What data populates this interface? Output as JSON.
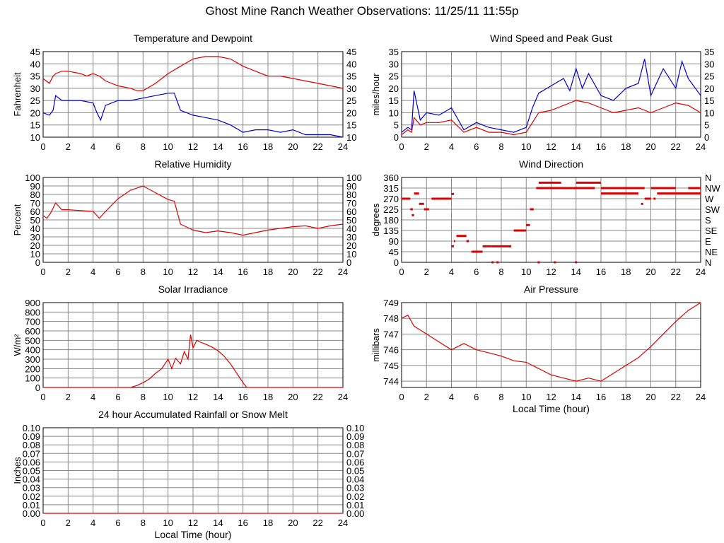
{
  "page": {
    "title": "Ghost Mine Ranch Weather Observations: 11/25/11 11:55p"
  },
  "colors": {
    "series_red": "#dd0000",
    "series_blue": "#0000cc",
    "grid": "#888888"
  },
  "chart_data": [
    {
      "id": "temperature",
      "type": "line",
      "title": "Temperature and Dewpoint",
      "ylabel": "Fahrenheit",
      "xlabel": "",
      "xlim": [
        0,
        24
      ],
      "ylim": [
        10,
        45
      ],
      "yticks": [
        10,
        15,
        20,
        25,
        30,
        35,
        40,
        45
      ],
      "xticks": [
        0,
        2,
        4,
        6,
        8,
        10,
        12,
        14,
        16,
        18,
        20,
        22,
        24
      ],
      "right_axis": true,
      "grid": true,
      "series": [
        {
          "color": "#dd0000",
          "x": [
            0,
            0.5,
            0.8,
            1,
            1.5,
            2,
            3,
            3.5,
            4,
            4.5,
            5,
            6,
            7,
            7.5,
            8,
            9,
            10,
            11,
            12,
            13,
            14,
            15,
            16,
            17,
            18,
            19,
            20,
            21,
            22,
            23,
            24
          ],
          "y": [
            34,
            32,
            35,
            36,
            37,
            37,
            36,
            35,
            36,
            35,
            33,
            31,
            30,
            29,
            29,
            32,
            36,
            39,
            42,
            43,
            43,
            42,
            39,
            37,
            35,
            35,
            34,
            33,
            32,
            31,
            30
          ]
        },
        {
          "color": "#0000cc",
          "x": [
            0,
            0.5,
            0.8,
            1,
            1.5,
            2,
            3,
            4,
            4.3,
            4.6,
            5,
            6,
            7,
            8,
            9,
            10,
            10.5,
            11,
            12,
            13,
            14,
            15,
            16,
            17,
            18,
            19,
            20,
            21,
            22,
            23,
            24
          ],
          "y": [
            20,
            19,
            21,
            27,
            25,
            25,
            25,
            24,
            20,
            17,
            23,
            25,
            25,
            26,
            27,
            28,
            28,
            21,
            19,
            18,
            17,
            15,
            12,
            13,
            13,
            12,
            13,
            11,
            11,
            11,
            10
          ]
        }
      ]
    },
    {
      "id": "wind-speed",
      "type": "line",
      "title": "Wind Speed and Peak Gust",
      "ylabel": "miles/hour",
      "xlabel": "",
      "xlim": [
        0,
        24
      ],
      "ylim": [
        0,
        35
      ],
      "yticks": [
        0,
        5,
        10,
        15,
        20,
        25,
        30,
        35
      ],
      "xticks": [
        0,
        2,
        4,
        6,
        8,
        10,
        12,
        14,
        16,
        18,
        20,
        22,
        24
      ],
      "right_axis": true,
      "grid": true,
      "series": [
        {
          "color": "#0000cc",
          "x": [
            0,
            0.5,
            0.8,
            1,
            1.5,
            2,
            3,
            4,
            5,
            6,
            7,
            8,
            9,
            10,
            10.5,
            11,
            12,
            13,
            13.5,
            14,
            14.5,
            15,
            16,
            17,
            18,
            19,
            19.5,
            20,
            21,
            22,
            22.5,
            23,
            24
          ],
          "y": [
            2,
            4,
            3,
            19,
            7,
            10,
            9,
            12,
            3,
            6,
            4,
            3,
            2,
            4,
            12,
            18,
            21,
            24,
            19,
            28,
            20,
            26,
            17,
            15,
            20,
            22,
            32,
            17,
            28,
            20,
            31,
            24,
            17
          ]
        },
        {
          "color": "#dd0000",
          "x": [
            0,
            0.5,
            0.8,
            1,
            1.5,
            2,
            3,
            4,
            5,
            6,
            7,
            8,
            9,
            10,
            11,
            12,
            13,
            14,
            15,
            16,
            17,
            18,
            19,
            20,
            21,
            22,
            23,
            24
          ],
          "y": [
            1,
            3,
            2,
            8,
            5,
            6,
            6,
            7,
            2,
            4,
            2,
            2,
            1,
            2,
            10,
            11,
            13,
            15,
            14,
            12,
            10,
            11,
            12,
            10,
            12,
            14,
            13,
            10
          ]
        }
      ]
    },
    {
      "id": "humidity",
      "type": "line",
      "title": "Relative Humidity",
      "ylabel": "Percent",
      "xlabel": "",
      "xlim": [
        0,
        24
      ],
      "ylim": [
        0,
        100
      ],
      "yticks": [
        0,
        10,
        20,
        30,
        40,
        50,
        60,
        70,
        80,
        90,
        100
      ],
      "xticks": [
        0,
        2,
        4,
        6,
        8,
        10,
        12,
        14,
        16,
        18,
        20,
        22,
        24
      ],
      "right_axis": true,
      "grid": true,
      "series": [
        {
          "color": "#dd0000",
          "x": [
            0,
            0.3,
            0.6,
            1,
            1.5,
            2,
            3,
            4,
            4.5,
            5,
            6,
            7,
            8,
            9,
            10,
            10.5,
            11,
            12,
            13,
            14,
            15,
            16,
            17,
            18,
            19,
            20,
            21,
            22,
            23,
            24
          ],
          "y": [
            55,
            52,
            58,
            70,
            62,
            62,
            61,
            60,
            52,
            60,
            75,
            85,
            90,
            82,
            74,
            72,
            45,
            38,
            35,
            37,
            35,
            32,
            35,
            38,
            40,
            42,
            43,
            40,
            43,
            45
          ]
        }
      ]
    },
    {
      "id": "wind-direction",
      "type": "scatter",
      "title": "Wind Direction",
      "ylabel": "degrees",
      "xlabel": "",
      "xlim": [
        0,
        24
      ],
      "ylim": [
        0,
        360
      ],
      "yticks": [
        0,
        45,
        90,
        135,
        180,
        225,
        270,
        315,
        360
      ],
      "xticks": [
        0,
        2,
        4,
        6,
        8,
        10,
        12,
        14,
        16,
        18,
        20,
        22,
        24
      ],
      "right_tick_labels": [
        "N",
        "NE",
        "E",
        "SE",
        "S",
        "SW",
        "W",
        "NW",
        "N"
      ],
      "grid": true,
      "segments": [
        [
          0,
          0.7,
          270
        ],
        [
          0.7,
          0.9,
          225
        ],
        [
          0.9,
          1.0,
          200
        ],
        [
          1.0,
          1.4,
          292
        ],
        [
          1.4,
          1.8,
          248
        ],
        [
          1.8,
          2.2,
          225
        ],
        [
          2.4,
          4.0,
          270
        ],
        [
          4.0,
          4.2,
          290
        ],
        [
          4.0,
          4.2,
          68
        ],
        [
          4.2,
          4.3,
          90
        ],
        [
          4.4,
          5.2,
          112
        ],
        [
          5.2,
          5.4,
          90
        ],
        [
          5.6,
          6.5,
          45
        ],
        [
          6.5,
          7.2,
          68
        ],
        [
          7.2,
          8.8,
          68
        ],
        [
          9.0,
          10.0,
          135
        ],
        [
          10.0,
          10.3,
          158
        ],
        [
          10.3,
          10.6,
          225
        ],
        [
          10.8,
          13.0,
          315
        ],
        [
          11.0,
          12.8,
          338
        ],
        [
          13.0,
          15.5,
          315
        ],
        [
          14.0,
          16.0,
          338
        ],
        [
          16.0,
          19.0,
          292
        ],
        [
          16.0,
          19.5,
          315
        ],
        [
          19.5,
          20.0,
          270
        ],
        [
          20.0,
          22.0,
          315
        ],
        [
          20.5,
          24.0,
          292
        ],
        [
          23.0,
          24.0,
          315
        ]
      ],
      "points": [
        [
          0.9,
          200
        ],
        [
          7.3,
          0
        ],
        [
          7.7,
          0
        ],
        [
          11.0,
          0
        ],
        [
          12.3,
          0
        ],
        [
          14.0,
          0
        ],
        [
          19.3,
          248
        ],
        [
          20.3,
          270
        ]
      ]
    },
    {
      "id": "solar",
      "type": "line",
      "title": "Solar Irradiance",
      "ylabel": "W/m²",
      "xlabel": "",
      "xlim": [
        0,
        24
      ],
      "ylim": [
        0,
        900
      ],
      "yticks": [
        0,
        100,
        200,
        300,
        400,
        500,
        600,
        700,
        800,
        900
      ],
      "xticks": [
        0,
        2,
        4,
        6,
        8,
        10,
        12,
        14,
        16,
        18,
        20,
        22,
        24
      ],
      "right_axis": false,
      "grid": true,
      "series": [
        {
          "color": "#dd0000",
          "x": [
            0,
            7,
            7.5,
            8,
            8.5,
            9,
            9.5,
            10,
            10.3,
            10.6,
            11,
            11.3,
            11.6,
            11.8,
            12,
            12.3,
            12.6,
            13,
            13.5,
            14,
            14.5,
            15,
            15.5,
            16,
            16.3,
            17,
            24
          ],
          "y": [
            0,
            0,
            20,
            50,
            90,
            150,
            200,
            300,
            200,
            310,
            250,
            380,
            300,
            560,
            420,
            500,
            480,
            460,
            430,
            390,
            330,
            250,
            150,
            50,
            0,
            0,
            0
          ]
        }
      ]
    },
    {
      "id": "pressure",
      "type": "line",
      "title": "Air Pressure",
      "ylabel": "millibars",
      "xlabel": "Local Time (hour)",
      "xlim": [
        0,
        24
      ],
      "ylim": [
        743.6,
        749
      ],
      "yticks": [
        744,
        745,
        746,
        747,
        748,
        749
      ],
      "xticks": [
        0,
        2,
        4,
        6,
        8,
        10,
        12,
        14,
        16,
        18,
        20,
        22,
        24
      ],
      "right_axis": false,
      "grid": true,
      "series": [
        {
          "color": "#dd0000",
          "x": [
            0,
            0.5,
            1,
            2,
            3,
            4,
            5,
            6,
            7,
            8,
            9,
            10,
            11,
            12,
            13,
            14,
            15,
            16,
            17,
            18,
            19,
            20,
            21,
            22,
            23,
            24
          ],
          "y": [
            748.0,
            748.2,
            747.5,
            747.0,
            746.5,
            746.0,
            746.4,
            746.0,
            745.8,
            745.6,
            745.3,
            745.2,
            744.8,
            744.4,
            744.2,
            744.0,
            744.2,
            744.0,
            744.5,
            745.0,
            745.5,
            746.2,
            747.0,
            747.8,
            748.5,
            749.0
          ]
        }
      ]
    },
    {
      "id": "rainfall",
      "type": "line",
      "title": "24 hour Accumulated Rainfall or Snow Melt",
      "ylabel": "Inches",
      "xlabel": "Local Time (hour)",
      "xlim": [
        0,
        24
      ],
      "ylim": [
        0,
        0.1
      ],
      "yticks": [
        0,
        0.01,
        0.02,
        0.03,
        0.04,
        0.05,
        0.06,
        0.07,
        0.08,
        0.09,
        0.1
      ],
      "ytick_labels": [
        "0.00",
        "0.01",
        "0.02",
        "0.03",
        "0.04",
        "0.05",
        "0.06",
        "0.07",
        "0.08",
        "0.09",
        "0.10"
      ],
      "xticks": [
        0,
        2,
        4,
        6,
        8,
        10,
        12,
        14,
        16,
        18,
        20,
        22,
        24
      ],
      "right_axis": true,
      "grid": true,
      "series": [
        {
          "color": "#dd0000",
          "x": [
            0,
            24
          ],
          "y": [
            0,
            0
          ]
        }
      ]
    }
  ]
}
